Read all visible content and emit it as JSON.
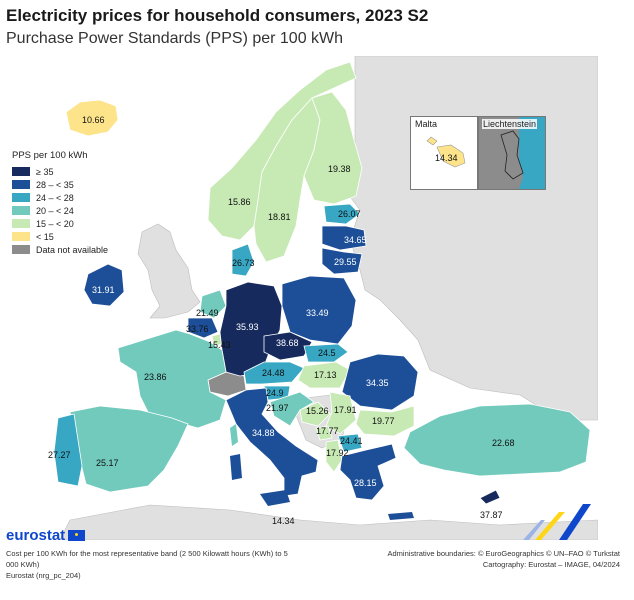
{
  "header": {
    "title": "Electricity prices for household consumers, 2023 S2",
    "subtitle": "Purchase Power Standards (PPS) per 100 kWh"
  },
  "legend": {
    "title": "PPS per 100 kWh",
    "items": [
      {
        "label": "≥ 35",
        "color": "#172a5e"
      },
      {
        "label": "28 – < 35",
        "color": "#1d4f98"
      },
      {
        "label": "24 – < 28",
        "color": "#37a7c3"
      },
      {
        "label": "20 – < 24",
        "color": "#72cabd"
      },
      {
        "label": "15 – < 20",
        "color": "#c7e9b4"
      },
      {
        "label": "< 15",
        "color": "#fde48b"
      },
      {
        "label": "Data not available",
        "color": "#8c8c8c"
      }
    ]
  },
  "insets": {
    "malta": {
      "title": "Malta",
      "value": "14.34"
    },
    "liechtenstein": {
      "title": "Liechtenstein"
    }
  },
  "countries": {
    "iceland": "10.66",
    "norway": "15.86",
    "sweden": "18.81",
    "finland": "19.38",
    "estonia": "26.07",
    "latvia": "34.65",
    "lithuania": "29.55",
    "denmark": "26.73",
    "ireland": "31.91",
    "netherlands": "21.49",
    "belgium": "33.76",
    "luxembourg": "15.43",
    "germany": "35.93",
    "poland": "33.49",
    "czechia": "38.68",
    "slovakia": "24.5",
    "austria": "24.48",
    "hungary": "17.13",
    "romania": "34.35",
    "france": "23.86",
    "slovenia": "24.9",
    "croatia": "21.97",
    "bosnia": "15.26",
    "serbia": "17.91",
    "bulgaria": "19.77",
    "montenegro": "17.77",
    "north_macedonia": "24.41",
    "albania": "17.92",
    "greece": "28.15",
    "italy": "34.88",
    "spain": "25.17",
    "portugal": "27.27",
    "turkey": "22.68",
    "cyprus": "37.87",
    "malta": "14.34"
  },
  "footer": {
    "logo": "eurostat",
    "note_line1": "Cost per 100 KWh for the most representative band (2 500 Kilowatt hours (KWh) to 5",
    "note_line2": "000 KWh)",
    "source": "Eurostat (nrg_pc_204)",
    "admin": "Administrative boundaries: © EuroGeographics © UN–FAO © Turkstat",
    "carto": "Cartography: Eurostat – IMAGE, 04/2024"
  }
}
